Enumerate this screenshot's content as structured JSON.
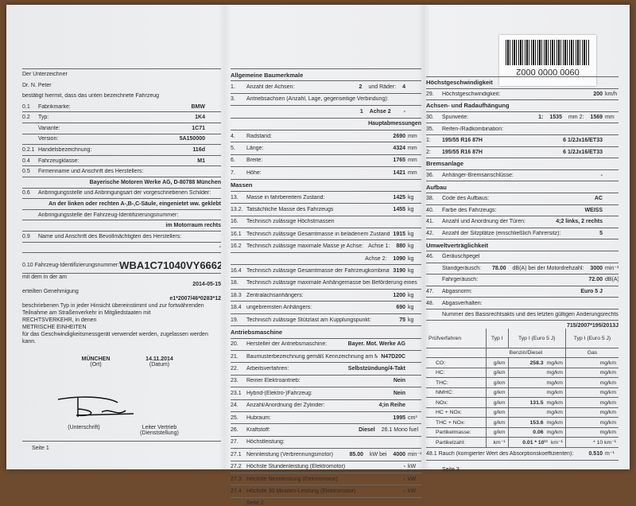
{
  "page1": {
    "rows": [
      {
        "t": "p",
        "l": "Der Unterzeichner"
      },
      {
        "t": "p",
        "l": "Dr. N. Peter"
      },
      {
        "t": "p",
        "l": "bestätigt hiermit, dass das unten bezeichnete Fahrzeug"
      },
      {
        "n": "0.1",
        "l": "Fabrikmarke:",
        "v": "BMW"
      },
      {
        "n": "0.2",
        "l": "Typ:",
        "v": "1K4"
      },
      {
        "n": "",
        "l": "Variante:",
        "v": "1C71"
      },
      {
        "n": "",
        "l": "Version:",
        "v": "5A150000"
      },
      {
        "n": "0.2.1",
        "l": "Handelsbezeichnung:",
        "v": "116d"
      },
      {
        "n": "0.4",
        "l": "Fahrzeugklasse:",
        "v": "M1"
      },
      {
        "n": "0.5",
        "l": "Firmenname und Anschrift des Herstellers:"
      },
      {
        "t": "v",
        "v": "Bayerische Motoren Werke AG, D-80788 München"
      },
      {
        "n": "0.6",
        "l": "Anbringungsstelle und Anbringungsart der vorgeschriebenen Schilder:"
      },
      {
        "t": "v",
        "v": "An der linken oder rechten A-,B-,C-Säule, eingenietet ww. geklebt"
      },
      {
        "n": "",
        "l": "Anbringungsstelle der Fahrzeug-Identifizierungsnummer:"
      },
      {
        "t": "v",
        "v": "im Motorraum rechts"
      },
      {
        "n": "0.9",
        "l": "Name und Anschrift des Bevollmächtigten des Herstellers:"
      },
      {
        "t": "v",
        "v": "-"
      }
    ],
    "vin_label": "0.10 Fahrzeug-Identifizierungsnummer:",
    "vin": "WBA1C71040VY66626",
    "text1": "mit dem in der am",
    "approval_date": "2014-05-15",
    "text2": "erteilten Genehmigung",
    "approval_number": "e1*2007/46*0283*12",
    "para": [
      "beschriebenen Typ in jeder Hinsicht übereinstimmt und zur fortwährenden",
      "Teilnahme am Straßenverkehr in Mitgliedstaaten mit",
      "RECHTSVERKEHR, in denen",
      "METRISCHE EINHEITEN",
      "für das Geschwindigkeitsmessgerät verwendet werden, zugelassen werden kann."
    ],
    "place": "MÜNCHEN",
    "place_label": "(Ort)",
    "date": "14.11.2014",
    "date_label": "(Datum)",
    "signature_label": "(Unterschrift)",
    "position": "Leiter Vertrieb",
    "position_label": "(Dienststellung)",
    "footer": "Seite 1"
  },
  "page2": {
    "rows": [
      {
        "t": "h",
        "l": "Allgemeine Baumerkmale"
      },
      {
        "n": "1.",
        "l": "Anzahl der Achsen:",
        "v1": "2",
        "m": "und Räder:",
        "v": "4"
      },
      {
        "n": "3.",
        "l": "Antriebsachsen (Anzahl, Lage, gegenseitige Verbindung):"
      },
      {
        "n": "",
        "l": "",
        "pre": "1",
        "v1": "Achse 2",
        "m": "",
        "v": "-"
      },
      {
        "t": "v",
        "v": "Hauptabmessungen"
      },
      {
        "n": "4.",
        "l": "Radstand:",
        "v": "2690",
        "u": "mm"
      },
      {
        "n": "5.",
        "l": "Länge:",
        "v": "4324",
        "u": "mm"
      },
      {
        "n": "6.",
        "l": "Breite:",
        "v": "1765",
        "u": "mm"
      },
      {
        "n": "7.",
        "l": "Höhe:",
        "v": "1421",
        "u": "mm"
      },
      {
        "t": "h",
        "l": "Massen"
      },
      {
        "n": "13.",
        "l": "Masse in fahrbereitem Zustand:",
        "v": "1425",
        "u": "kg"
      },
      {
        "n": "13.2.",
        "l": "Tatsächliche Masse des Fahrzeugs",
        "v": "1455",
        "u": "kg"
      },
      {
        "n": "16.",
        "l": "Technisch zulässige Höchstmassen"
      },
      {
        "n": "16.1",
        "l": "Technisch zulässige Gesamtmasse in beladenem Zustand:",
        "v": "1915",
        "u": "kg"
      },
      {
        "n": "16.2",
        "l": "Technisch zulässige maximale Masse je Achse:",
        "m": "Achse 1:",
        "v": "880",
        "u": "kg"
      },
      {
        "n": "",
        "l": "",
        "m": "Achse 2:",
        "v": "1090",
        "u": "kg"
      },
      {
        "n": "16.4",
        "l": "Technisch zulässige Gesamtmasse der Fahrzeugkombination:",
        "v": "3190",
        "u": "kg"
      },
      {
        "n": "18.",
        "l": "Technisch zulässige maximale Anhängemasse bei Beförderung eines"
      },
      {
        "n": "18.3",
        "l": "Zentralachsanhängers:",
        "v": "1200",
        "u": "kg"
      },
      {
        "n": "18.4",
        "l": "ungebremsten Anhängers:",
        "v": "690",
        "u": "kg"
      },
      {
        "n": "19.",
        "l": "Technisch zulässige Stützlast am Kupplungspunkt:",
        "v": "75",
        "u": "kg"
      },
      {
        "t": "h",
        "l": "Antriebsmaschine"
      },
      {
        "n": "20.",
        "l": "Hersteller der Antriebsmaschine:",
        "v": "Bayer. Mot. Werke AG"
      },
      {
        "n": "21.",
        "l": "Baumusterbezeichnung gemäß Kennzeichnung am Motor:",
        "v": "N47D20C"
      },
      {
        "n": "22.",
        "l": "Arbeitsverfahren:",
        "v": "Selbstzündung/4-Takt"
      },
      {
        "n": "23.",
        "l": "Reiner Elektroantrieb:",
        "v": "Nein"
      },
      {
        "n": "23.1",
        "l": "Hybrid-(Elektro-)Fahrzeug:",
        "v": "Nein"
      },
      {
        "n": "24.",
        "l": "Anzahl/Anordnung der Zylinder:",
        "v": "4;in Reihe"
      },
      {
        "n": "25.",
        "l": "Hubraum:",
        "v": "1995",
        "u": "cm³"
      },
      {
        "n": "26.",
        "l": "Kraftstoff:",
        "pre": "Diesel",
        "m": "26.1 Mono fuel"
      },
      {
        "n": "27.",
        "l": "Höchstleistung:"
      },
      {
        "n": "27.1",
        "l": "Nennleistung (Verbrennungsmotor)",
        "v1": "85.00",
        "m": "kW bei",
        "v": "4000",
        "u": "min⁻¹"
      },
      {
        "n": "27.2",
        "l": "Höchste Stundenleistung (Elektromotor)",
        "v": "-",
        "u": "kW"
      },
      {
        "n": "27.3",
        "l": "Höchste Nennleistung (Elektromotor)",
        "v": "-",
        "u": "kW"
      },
      {
        "n": "27.4",
        "l": "Höchste 30 Minuten-Leistung (Elektromotor)",
        "v": "-",
        "u": "kW"
      }
    ],
    "footer": "Seite 2"
  },
  "page3": {
    "rows": [
      {
        "t": "h",
        "l": "Höchstgeschwindigkeit"
      },
      {
        "n": "29.",
        "l": "Höchstgeschwindigkeit:",
        "v": "200",
        "u": "km/h"
      },
      {
        "t": "h",
        "l": "Achsen- und Radaufhängung"
      },
      {
        "n": "30.",
        "l": "Spurweite:",
        "pre": "1:",
        "v1": "1535",
        "m": "mm      2:",
        "v": "1569",
        "u": "mm"
      },
      {
        "n": "35.",
        "l": "Reifen-/Radkombination:"
      },
      {
        "n": "1:",
        "l": "195/55 R16 87H",
        "bl": true,
        "v": "6 1/2Jx16/ET33",
        "u": ""
      },
      {
        "n": "2:",
        "l": "195/55 R16 87H",
        "bl": true,
        "v": "6 1/2Jx16/ET33",
        "u": ""
      },
      {
        "t": "h",
        "l": "Bremsanlage"
      },
      {
        "n": "36.",
        "l": "Anhänger-Bremsanschlüsse:",
        "v": "-"
      },
      {
        "t": "h",
        "l": "Aufbau"
      },
      {
        "n": "38.",
        "l": "Code des Aufbaus:",
        "v": "AC"
      },
      {
        "n": "40.",
        "l": "Farbe des Fahrzeugs:",
        "v": "WEISS"
      },
      {
        "n": "41.",
        "l": "Anzahl und Anordnung der Türen:",
        "v": "4;2 links, 2 rechts"
      },
      {
        "n": "42.",
        "l": "Anzahl der Sitzplätze (einschließlich Fahrersitz):",
        "v": "5"
      },
      {
        "t": "h",
        "l": "Umweltverträglichkeit"
      },
      {
        "n": "46.",
        "l": "Geräuschpegel"
      },
      {
        "n": "",
        "l": "Standgeräusch:",
        "v1": "78.00",
        "m": "dB(A) bei der Motordrehzahl:",
        "v": "3000",
        "u": "min⁻¹"
      },
      {
        "n": "",
        "l": "Fahrgeräusch:",
        "v": "72.00",
        "u": "dB(A)"
      },
      {
        "n": "47.",
        "l": "Abgasnorm:",
        "v": "Euro 5 J"
      },
      {
        "n": "48.",
        "l": "Abgasverhalten:"
      },
      {
        "n": "",
        "l": "Nummer des Basisrechtsakts und des letzten gültigen Änderungsrechtsakts:"
      }
    ],
    "regulation": "715/2007*195/2013J",
    "table": {
      "headers": [
        "Prüfverfahren",
        "Typ I",
        "Typ I (Euro 5 J)",
        "Typ I (Euro 5 J)"
      ],
      "fuel_row": [
        "Benzin/Diesel",
        "Gas"
      ],
      "rows": [
        [
          "CO:",
          "g/km",
          "258.3",
          "mg/km",
          "mg/km"
        ],
        [
          "HC:",
          "g/km",
          "",
          "mg/km",
          "mg/km"
        ],
        [
          "THC:",
          "g/km",
          "",
          "mg/km",
          "mg/km"
        ],
        [
          "NMHC:",
          "g/km",
          "",
          "mg/km",
          "mg/km"
        ],
        [
          "NOx:",
          "g/km",
          "131.5",
          "mg/km",
          "mg/km"
        ],
        [
          "HC + NOx:",
          "g/km",
          "",
          "mg/km",
          "mg/km"
        ],
        [
          "THC + NOx:",
          "g/km",
          "153.6",
          "mg/km",
          "mg/km"
        ],
        [
          "Partikelmasse:",
          "g/km",
          "0.06",
          "mg/km",
          "mg/km"
        ],
        [
          "Partikelzahl:",
          "km⁻¹",
          "0.01 * 10¹¹",
          "km⁻¹",
          "* 10   km⁻¹"
        ]
      ]
    },
    "smoke_label": "48.1 Rauch (korrigierter Wert des Absorptionskoeffizienten):",
    "smoke_value": "0.510",
    "smoke_unit": "m⁻¹",
    "footer": "Seite 3"
  },
  "barcode_number": "0900 0000 0002"
}
